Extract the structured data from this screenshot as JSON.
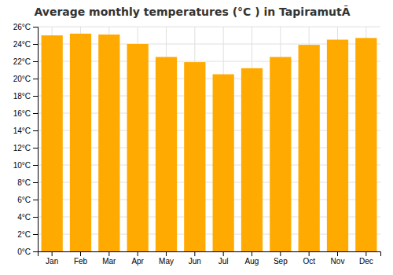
{
  "chart_data": {
    "type": "bar",
    "title": "Average monthly temperatures (°C ) in TapiramutÃ",
    "categories": [
      "Jan",
      "Feb",
      "Mar",
      "Apr",
      "May",
      "Jun",
      "Jul",
      "Aug",
      "Sep",
      "Oct",
      "Nov",
      "Dec"
    ],
    "values": [
      25.0,
      25.2,
      25.1,
      24.0,
      22.5,
      21.9,
      20.5,
      21.2,
      22.5,
      23.9,
      24.5,
      24.7
    ],
    "color": "#FFAA00",
    "ylim": [
      0,
      26
    ],
    "yticks": [
      {
        "value": 0,
        "label": "0°C"
      },
      {
        "value": 2,
        "label": "2°C"
      },
      {
        "value": 4,
        "label": "4°C"
      },
      {
        "value": 6,
        "label": "6°C"
      },
      {
        "value": 8,
        "label": "8°C"
      },
      {
        "value": 10,
        "label": "10°C"
      },
      {
        "value": 12,
        "label": "12°C"
      },
      {
        "value": 14,
        "label": "14°C"
      },
      {
        "value": 16,
        "label": "16°C"
      },
      {
        "value": 18,
        "label": "18°C"
      },
      {
        "value": 20,
        "label": "20°C"
      },
      {
        "value": 22,
        "label": "22°C"
      },
      {
        "value": 24,
        "label": "24°C"
      },
      {
        "value": 26,
        "label": "26°C"
      }
    ],
    "grid": true
  }
}
